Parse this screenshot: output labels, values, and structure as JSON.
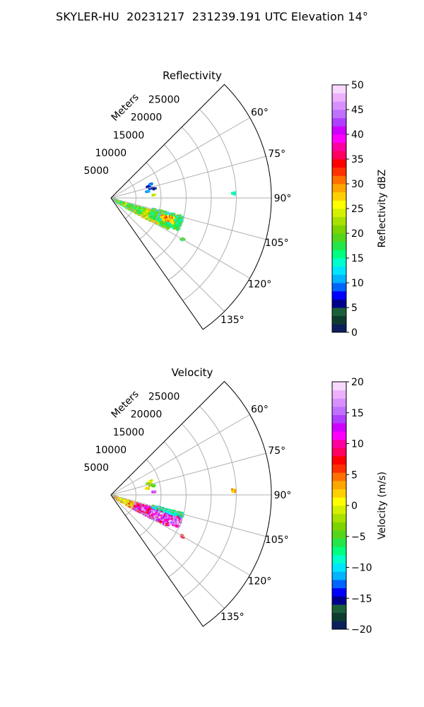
{
  "figure_title": "SKYLER-HU  20231217  231239.191 UTC Elevation 14°",
  "chart_data": [
    {
      "type": "heatmap",
      "subtype": "polar-sector-radar",
      "title": "Reflectivity",
      "radial_label": "Meters",
      "r_ticks": [
        "5000",
        "10000",
        "15000",
        "20000",
        "25000"
      ],
      "r_max": 32000,
      "theta_min_deg": 45,
      "theta_max_deg": 145,
      "theta_ticks": [
        "60°",
        "75°",
        "90°",
        "105°",
        "120°",
        "135°"
      ],
      "theta_tick_values": [
        60,
        75,
        90,
        105,
        120,
        135
      ],
      "grid": true,
      "colorbar": {
        "label": "Reflectivity dBZ",
        "min": 0,
        "max": 50,
        "ticks": [
          "0",
          "5",
          "10",
          "15",
          "20",
          "25",
          "30",
          "35",
          "40",
          "45",
          "50"
        ],
        "colors": [
          "#0a1f5c",
          "#0d3b2e",
          "#1b5e3a",
          "#00008b",
          "#0000ff",
          "#0064ff",
          "#00b4ff",
          "#00e5ff",
          "#00ffcc",
          "#00ff80",
          "#22e64a",
          "#55d61a",
          "#7dd300",
          "#a8e000",
          "#d4f000",
          "#ffff00",
          "#ffd000",
          "#ffa500",
          "#ff7000",
          "#ff3000",
          "#ff0000",
          "#ff0060",
          "#ff00a0",
          "#ff00ff",
          "#d000ff",
          "#b040ff",
          "#c070ff",
          "#d890ff",
          "#ecb0ff",
          "#f8d8ff"
        ]
      },
      "echo_description_points": [
        {
          "azimuth_deg": 115,
          "range_m": 9000,
          "value": 17
        },
        {
          "azimuth_deg": 110,
          "range_m": 14000,
          "value": 27
        },
        {
          "azimuth_deg": 108,
          "range_m": 12000,
          "value": 20
        },
        {
          "azimuth_deg": 120,
          "range_m": 8000,
          "value": 22
        },
        {
          "azimuth_deg": 100,
          "range_m": 11000,
          "value": 12
        },
        {
          "azimuth_deg": 76,
          "range_m": 8000,
          "value": 6
        },
        {
          "azimuth_deg": 116,
          "range_m": 17000,
          "value": 16
        }
      ]
    },
    {
      "type": "heatmap",
      "subtype": "polar-sector-radar",
      "title": "Velocity",
      "radial_label": "Meters",
      "r_ticks": [
        "5000",
        "10000",
        "15000",
        "20000",
        "25000"
      ],
      "r_max": 32000,
      "theta_min_deg": 45,
      "theta_max_deg": 145,
      "theta_ticks": [
        "60°",
        "75°",
        "90°",
        "105°",
        "120°",
        "135°"
      ],
      "theta_tick_values": [
        60,
        75,
        90,
        105,
        120,
        135
      ],
      "grid": true,
      "colorbar": {
        "label": "Velocity (m/s)",
        "min": -20,
        "max": 20,
        "ticks": [
          "-20",
          "-15",
          "-10",
          "-5",
          "0",
          "5",
          "10",
          "15",
          "20"
        ],
        "colors": [
          "#0a1f5c",
          "#0d3b2e",
          "#1b5e3a",
          "#00008b",
          "#0000ff",
          "#0064ff",
          "#00b4ff",
          "#00e5ff",
          "#00ffcc",
          "#00ff80",
          "#22e64a",
          "#55d61a",
          "#7dd300",
          "#a8e000",
          "#d4f000",
          "#ffff00",
          "#ffd000",
          "#ffa500",
          "#ff7000",
          "#ff3000",
          "#ff0000",
          "#ff0060",
          "#ff00a0",
          "#ff00ff",
          "#d000ff",
          "#b040ff",
          "#c070ff",
          "#d890ff",
          "#ecb0ff",
          "#f8d8ff"
        ]
      },
      "echo_description_points": [
        {
          "azimuth_deg": 125,
          "range_m": 6000,
          "value": 3
        },
        {
          "azimuth_deg": 118,
          "range_m": 9000,
          "value": 11
        },
        {
          "azimuth_deg": 115,
          "range_m": 13000,
          "value": 14
        },
        {
          "azimuth_deg": 108,
          "range_m": 12000,
          "value": -10
        },
        {
          "azimuth_deg": 100,
          "range_m": 11000,
          "value": -6
        },
        {
          "azimuth_deg": 76,
          "range_m": 8000,
          "value": 2
        }
      ]
    }
  ]
}
